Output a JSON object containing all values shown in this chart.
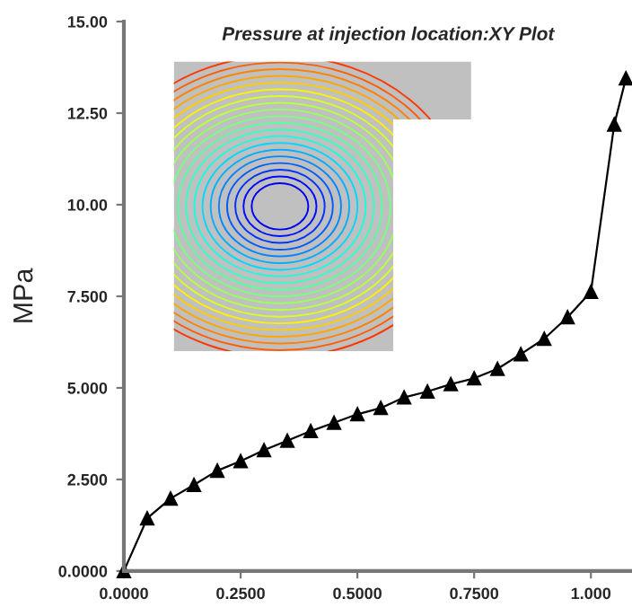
{
  "chart_data": {
    "type": "line",
    "title": "Pressure at injection location:XY Plot",
    "ylabel": "MPa",
    "x": [
      0,
      0.05,
      0.1,
      0.15,
      0.2,
      0.25,
      0.3,
      0.35,
      0.4,
      0.45,
      0.5,
      0.55,
      0.6,
      0.65,
      0.7,
      0.75,
      0.8,
      0.85,
      0.9,
      0.95,
      1.0,
      1.05,
      1.075
    ],
    "series": [
      {
        "color": "#000000",
        "values": [
          0,
          1.44,
          1.98,
          2.35,
          2.74,
          3.0,
          3.3,
          3.56,
          3.82,
          4.05,
          4.28,
          4.45,
          4.74,
          4.9,
          5.1,
          5.26,
          5.52,
          5.92,
          6.34,
          6.93,
          7.62,
          12.19,
          13.45
        ]
      }
    ],
    "xlim": [
      0,
      1.088
    ],
    "ylim": [
      0,
      15
    ],
    "xticks": [
      {
        "value": 0,
        "label": "0.0000"
      },
      {
        "value": 0.25,
        "label": "0.2500"
      },
      {
        "value": 0.5,
        "label": "0.5000"
      },
      {
        "value": 0.75,
        "label": "0.7500"
      },
      {
        "value": 1.0,
        "label": "1.000"
      }
    ],
    "yticks": [
      {
        "value": 0,
        "label": "0.0000"
      },
      {
        "value": 2.5,
        "label": "2.500"
      },
      {
        "value": 5,
        "label": "5.000"
      },
      {
        "value": 7.5,
        "label": "7.500"
      },
      {
        "value": 10,
        "label": "10.00"
      },
      {
        "value": 12.5,
        "label": "12.50"
      },
      {
        "value": 15,
        "label": "15.00"
      }
    ],
    "marker": "triangle",
    "line_style": "solid",
    "grid": false,
    "legend": false
  }
}
